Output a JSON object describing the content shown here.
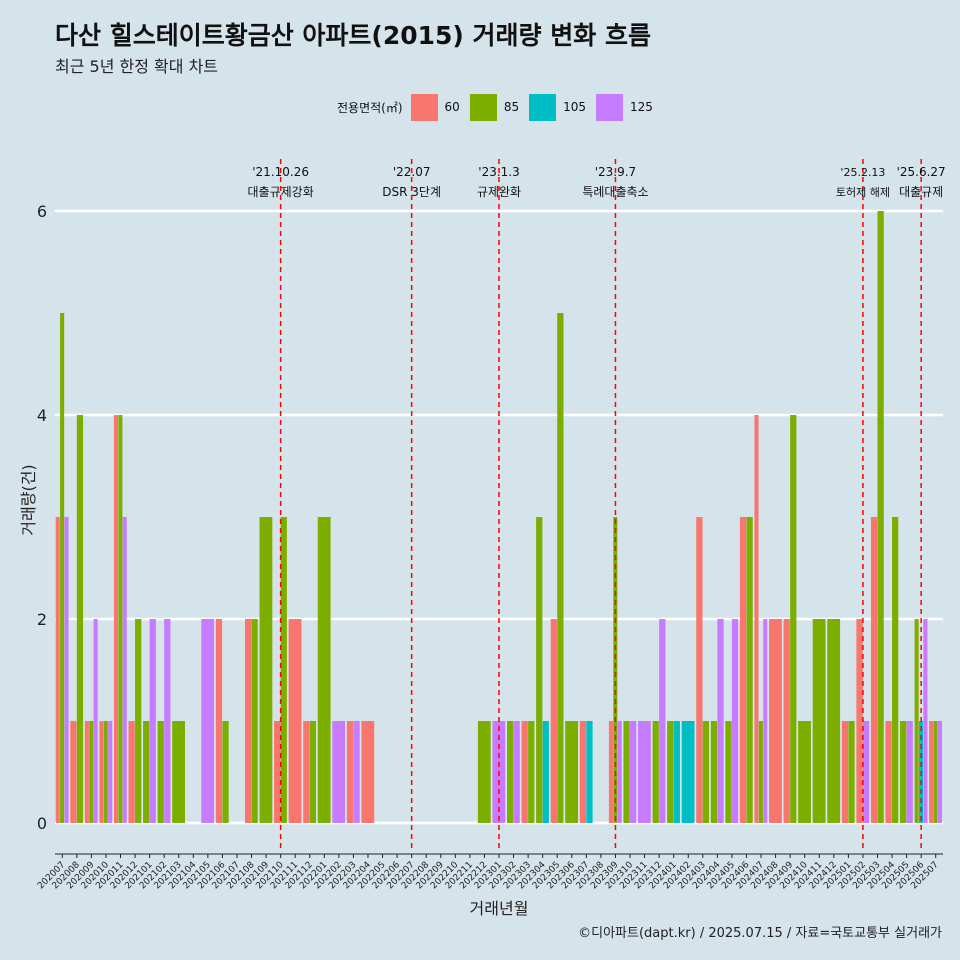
{
  "title": "다산 힐스테이트황금산 아파트(2015) 거래량 변화 흐름",
  "subtitle": "최근 5년 한정 확대 차트",
  "caption": "©디아파트(dapt.kr) / 2025.07.15 / 자료=국토교통부 실거래가",
  "legend": {
    "title": "전용면적(㎡)",
    "items": [
      {
        "label": "60",
        "color": "#f8766d"
      },
      {
        "label": "85",
        "color": "#7cae00"
      },
      {
        "label": "105",
        "color": "#00bfc4"
      },
      {
        "label": "125",
        "color": "#c77cff"
      }
    ]
  },
  "chart_data": {
    "type": "bar",
    "title": "다산 힐스테이트황금산 아파트(2015) 거래량 변화 흐름",
    "subtitle": "최근 5년 한정 확대 차트",
    "xlabel": "거래년월",
    "ylabel": "거래량(건)",
    "ylim": [
      0,
      6
    ],
    "yticks": [
      0,
      2,
      4,
      6
    ],
    "grid": "horizontal",
    "legend_position": "top",
    "categories": [
      "202007",
      "202008",
      "202009",
      "202010",
      "202011",
      "202012",
      "202101",
      "202102",
      "202103",
      "202104",
      "202105",
      "202106",
      "202107",
      "202108",
      "202109",
      "202110",
      "202111",
      "202112",
      "202201",
      "202202",
      "202203",
      "202204",
      "202205",
      "202206",
      "202207",
      "202208",
      "202209",
      "202210",
      "202211",
      "202212",
      "202301",
      "202302",
      "202303",
      "202304",
      "202305",
      "202306",
      "202307",
      "202308",
      "202309",
      "202310",
      "202311",
      "202312",
      "202401",
      "202402",
      "202403",
      "202404",
      "202405",
      "202406",
      "202407",
      "202408",
      "202409",
      "202410",
      "202411",
      "202412",
      "202501",
      "202502",
      "202503",
      "202504",
      "202505",
      "202506",
      "202507"
    ],
    "series": [
      {
        "name": "60",
        "color": "#f8766d",
        "values": [
          3,
          1,
          1,
          1,
          4,
          1,
          0,
          0,
          0,
          0,
          0,
          2,
          0,
          2,
          0,
          1,
          2,
          1,
          0,
          0,
          1,
          1,
          0,
          0,
          0,
          0,
          0,
          0,
          0,
          0,
          0,
          0,
          1,
          0,
          2,
          0,
          1,
          0,
          1,
          0,
          0,
          0,
          0,
          0,
          3,
          0,
          0,
          3,
          4,
          2,
          2,
          0,
          0,
          0,
          1,
          2,
          3,
          1,
          0,
          0,
          1
        ]
      },
      {
        "name": "85",
        "color": "#7cae00",
        "values": [
          5,
          4,
          1,
          1,
          4,
          2,
          1,
          1,
          1,
          0,
          0,
          1,
          0,
          2,
          3,
          3,
          0,
          1,
          3,
          0,
          0,
          0,
          0,
          0,
          0,
          0,
          0,
          0,
          0,
          1,
          0,
          1,
          1,
          3,
          5,
          1,
          0,
          0,
          3,
          1,
          0,
          1,
          1,
          0,
          1,
          1,
          1,
          3,
          1,
          0,
          4,
          1,
          2,
          2,
          1,
          0,
          6,
          3,
          1,
          2,
          1
        ]
      },
      {
        "name": "105",
        "color": "#00bfc4",
        "values": [
          0,
          0,
          0,
          0,
          0,
          0,
          0,
          0,
          0,
          0,
          0,
          0,
          0,
          0,
          0,
          0,
          0,
          0,
          0,
          0,
          0,
          0,
          0,
          0,
          0,
          0,
          0,
          0,
          0,
          0,
          0,
          0,
          0,
          1,
          0,
          0,
          1,
          0,
          0,
          0,
          0,
          0,
          1,
          1,
          0,
          0,
          0,
          0,
          0,
          0,
          0,
          0,
          0,
          0,
          0,
          0,
          0,
          0,
          0,
          1,
          0
        ]
      },
      {
        "name": "125",
        "color": "#c77cff",
        "values": [
          3,
          0,
          2,
          1,
          3,
          0,
          2,
          2,
          0,
          0,
          2,
          0,
          0,
          0,
          0,
          0,
          0,
          0,
          0,
          1,
          1,
          0,
          0,
          0,
          0,
          0,
          0,
          0,
          0,
          0,
          1,
          1,
          0,
          0,
          0,
          0,
          0,
          0,
          1,
          1,
          1,
          2,
          0,
          0,
          0,
          2,
          2,
          0,
          2,
          0,
          0,
          0,
          0,
          0,
          0,
          1,
          0,
          0,
          1,
          2,
          1
        ]
      }
    ],
    "events": [
      {
        "date": "'21.10.26",
        "label": "대출규제강화",
        "category": "202110"
      },
      {
        "date": "'22.07",
        "label": "DSR 3단계",
        "category": "202207"
      },
      {
        "date": "'23.1.3",
        "label": "규제완화",
        "category": "202301"
      },
      {
        "date": "'23.9.7",
        "label": "특례대출축소",
        "category": "202309"
      },
      {
        "date": "'25.2.13",
        "label": "토허제 해제",
        "category": "202502"
      },
      {
        "date": "'25.6.27",
        "label": "대출규제",
        "category": "202506"
      }
    ]
  }
}
